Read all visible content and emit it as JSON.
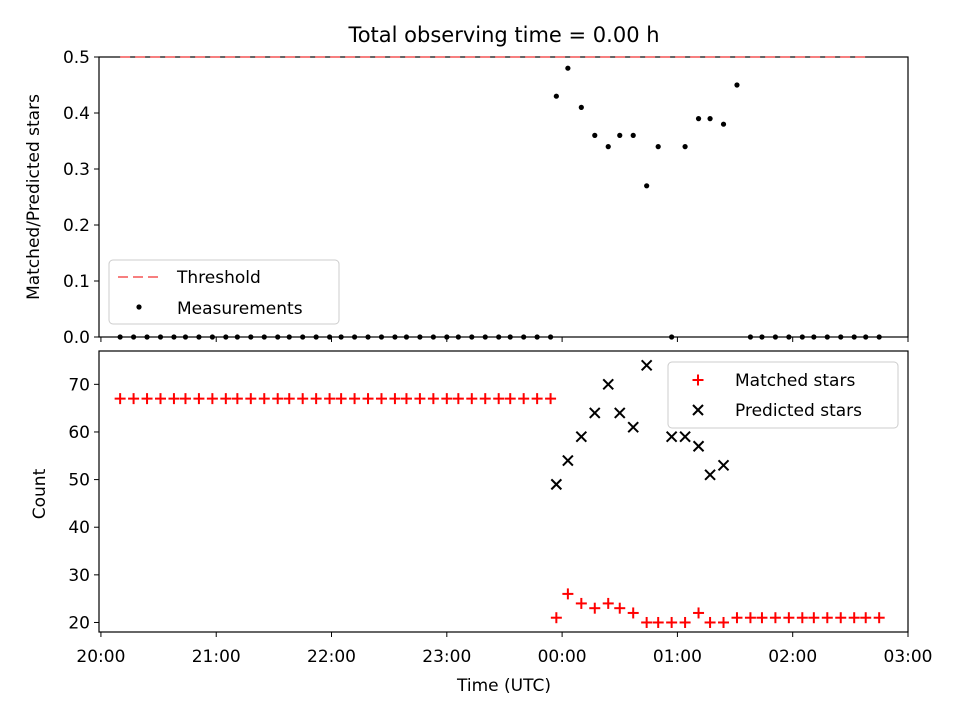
{
  "chart_data": [
    {
      "type": "scatter",
      "title": "Total observing time = 0.00 h",
      "ylabel": "Matched/Predicted stars",
      "xlabel": "",
      "ylim": [
        0,
        0.5
      ],
      "yticks": [
        "0.0",
        "0.1",
        "0.2",
        "0.3",
        "0.4",
        "0.5"
      ],
      "yticks_values": [
        0,
        0.1,
        0.2,
        0.3,
        0.4,
        0.5
      ],
      "threshold": {
        "name": "Threshold",
        "value": 0.5,
        "color": "#f77f7f",
        "x_start": "20:10",
        "x_end": "02:40"
      },
      "series": [
        {
          "name": "Measurements",
          "color": "#000000",
          "marker": "dot",
          "x": [
            "20:10",
            "20:17",
            "20:24",
            "20:31",
            "20:38",
            "20:44",
            "20:51",
            "20:58",
            "21:05",
            "21:11",
            "21:18",
            "21:25",
            "21:32",
            "21:38",
            "21:45",
            "21:52",
            "21:59",
            "22:05",
            "22:12",
            "22:19",
            "22:26",
            "22:33",
            "22:39",
            "22:46",
            "22:53",
            "23:00",
            "23:06",
            "23:13",
            "23:20",
            "23:27",
            "23:33",
            "23:40",
            "23:47",
            "23:54",
            "23:57",
            "00:03",
            "00:10",
            "00:17",
            "00:24",
            "00:30",
            "00:37",
            "00:44",
            "00:50",
            "00:57",
            "01:04",
            "01:11",
            "01:17",
            "01:24",
            "01:31",
            "01:38",
            "01:44",
            "01:51",
            "01:58",
            "02:05",
            "02:11",
            "02:18",
            "02:25",
            "02:32",
            "02:38",
            "02:45"
          ],
          "y": [
            0,
            0,
            0,
            0,
            0,
            0,
            0,
            0,
            0,
            0,
            0,
            0,
            0,
            0,
            0,
            0,
            0,
            0,
            0,
            0,
            0,
            0,
            0,
            0,
            0,
            0,
            0,
            0,
            0,
            0,
            0,
            0,
            0,
            0,
            0.43,
            0.48,
            0.41,
            0.36,
            0.34,
            0.36,
            0.36,
            0.27,
            0.34,
            0,
            0.34,
            0.39,
            0.39,
            0.38,
            0.45,
            0,
            0,
            0,
            0,
            0,
            0,
            0,
            0,
            0,
            0,
            0
          ]
        }
      ],
      "legend": [
        "Threshold",
        "Measurements"
      ],
      "legend_loc": "lower-left"
    },
    {
      "type": "scatter",
      "title": "",
      "ylabel": "Count",
      "xlabel": "Time (UTC)",
      "xlim": [
        "19:59",
        "03:00"
      ],
      "xticks": [
        "20:00",
        "21:00",
        "22:00",
        "23:00",
        "00:00",
        "01:00",
        "02:00",
        "03:00"
      ],
      "ylim": [
        18,
        77
      ],
      "yticks": [
        "20",
        "30",
        "40",
        "50",
        "60",
        "70"
      ],
      "yticks_values": [
        20,
        30,
        40,
        50,
        60,
        70
      ],
      "series": [
        {
          "name": "Matched stars",
          "color": "#ff0000",
          "marker": "plus",
          "x": [
            "20:10",
            "20:17",
            "20:24",
            "20:31",
            "20:38",
            "20:44",
            "20:51",
            "20:58",
            "21:05",
            "21:11",
            "21:18",
            "21:25",
            "21:32",
            "21:38",
            "21:45",
            "21:52",
            "21:59",
            "22:05",
            "22:12",
            "22:19",
            "22:26",
            "22:33",
            "22:39",
            "22:46",
            "22:53",
            "23:00",
            "23:06",
            "23:13",
            "23:20",
            "23:27",
            "23:33",
            "23:40",
            "23:47",
            "23:54",
            "23:57",
            "00:03",
            "00:10",
            "00:17",
            "00:24",
            "00:30",
            "00:37",
            "00:44",
            "00:50",
            "00:57",
            "01:04",
            "01:11",
            "01:17",
            "01:24",
            "01:31",
            "01:38",
            "01:44",
            "01:51",
            "01:58",
            "02:05",
            "02:11",
            "02:18",
            "02:25",
            "02:32",
            "02:38",
            "02:45"
          ],
          "y": [
            67,
            67,
            67,
            67,
            67,
            67,
            67,
            67,
            67,
            67,
            67,
            67,
            67,
            67,
            67,
            67,
            67,
            67,
            67,
            67,
            67,
            67,
            67,
            67,
            67,
            67,
            67,
            67,
            67,
            67,
            67,
            67,
            67,
            67,
            21,
            26,
            24,
            23,
            24,
            23,
            22,
            20,
            20,
            20,
            20,
            22,
            20,
            20,
            21,
            21,
            21,
            21,
            21,
            21,
            21,
            21,
            21,
            21,
            21,
            21
          ]
        },
        {
          "name": "Predicted stars",
          "color": "#000000",
          "marker": "x",
          "x": [
            "23:57",
            "00:03",
            "00:10",
            "00:17",
            "00:24",
            "00:30",
            "00:37",
            "00:44",
            "00:57",
            "01:04",
            "01:11",
            "01:17",
            "01:24"
          ],
          "y": [
            49,
            54,
            59,
            64,
            70,
            64,
            61,
            74,
            59,
            59,
            57,
            51,
            53
          ]
        }
      ],
      "legend": [
        "Matched stars",
        "Predicted stars"
      ],
      "legend_loc": "upper-right"
    }
  ]
}
